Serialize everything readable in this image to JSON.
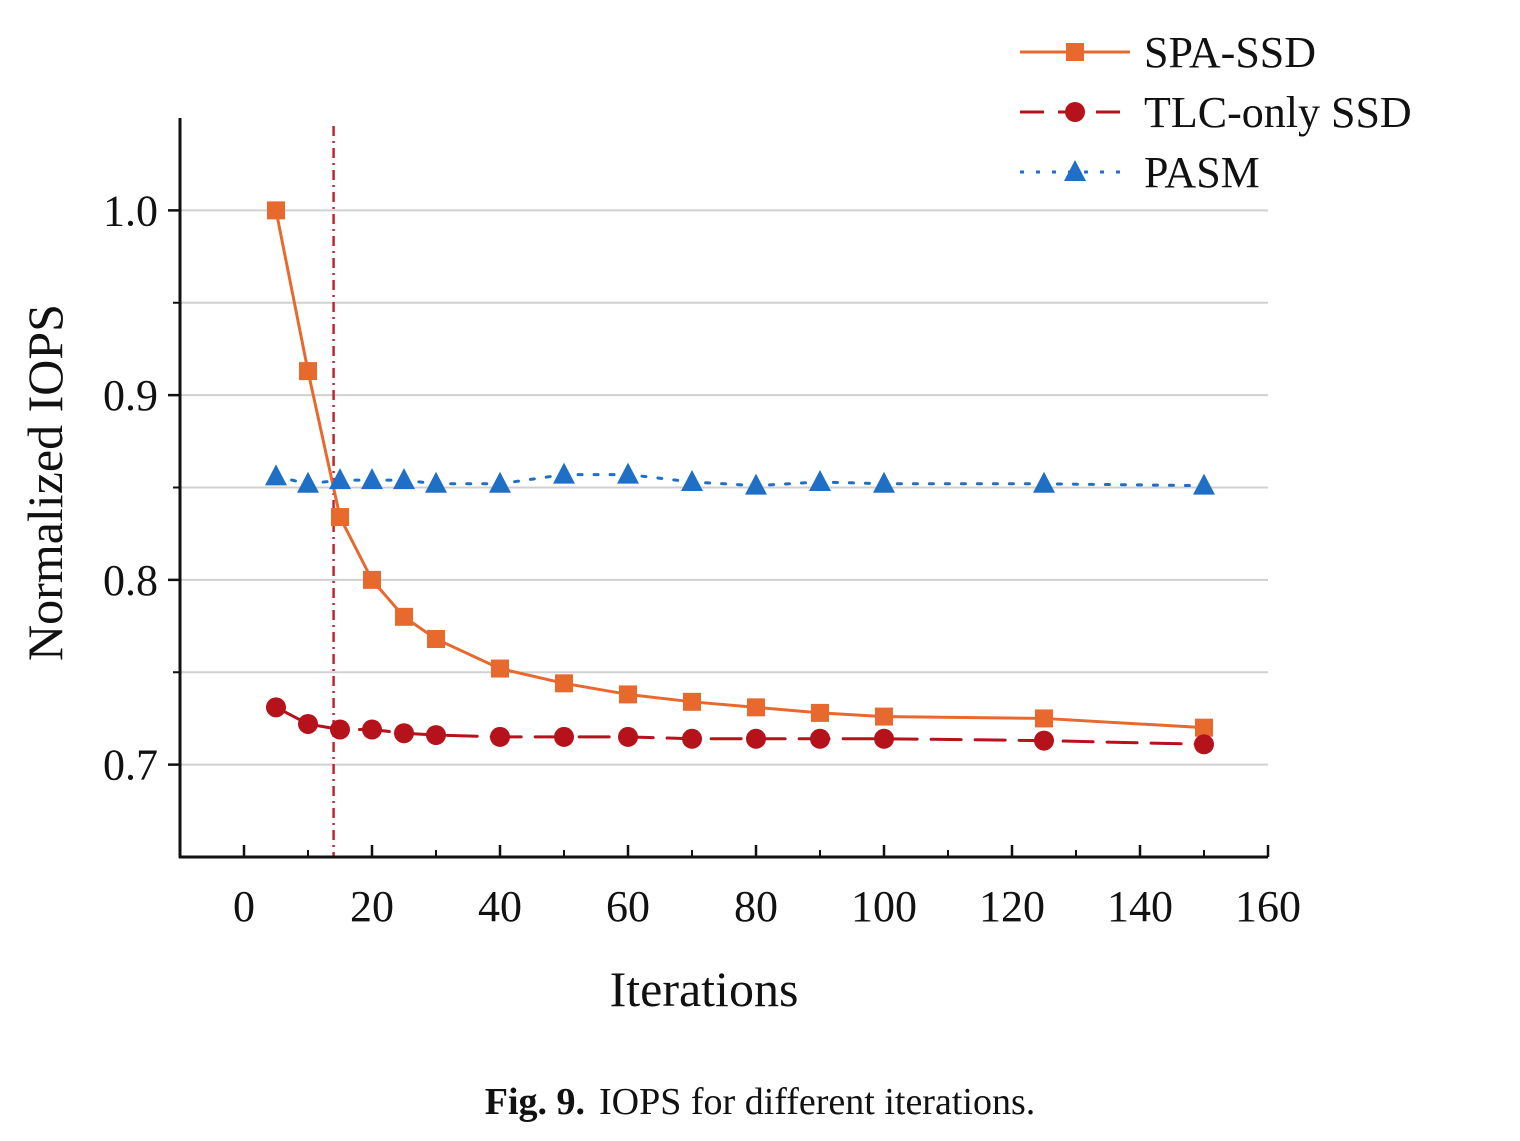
{
  "chart_data": {
    "type": "line",
    "xlabel": "Iterations",
    "ylabel": "Normalized IOPS",
    "xlim": [
      -10,
      160
    ],
    "ylim": [
      0.65,
      1.05
    ],
    "xticks": [
      0,
      20,
      40,
      60,
      80,
      100,
      120,
      140,
      160
    ],
    "xtick_labels": [
      "0",
      "20",
      "40",
      "60",
      "80",
      "100",
      "120",
      "140",
      "160"
    ],
    "yticks": [
      0.7,
      0.8,
      0.9,
      1.0
    ],
    "ytick_labels": [
      "0.7",
      "0.8",
      "0.9",
      "1.0"
    ],
    "y_minor_ticks": [
      0.75,
      0.85,
      0.95
    ],
    "grid": "horizontal",
    "legend_position": "top-right",
    "reference_line": {
      "x": 14,
      "color": "#c0272d",
      "style": "dash-dot"
    },
    "series": [
      {
        "name": "SPA-SSD",
        "color": "#e8692e",
        "marker": "square",
        "linestyle": "solid",
        "x": [
          5,
          10,
          15,
          20,
          25,
          30,
          40,
          50,
          60,
          70,
          80,
          90,
          100,
          125,
          150
        ],
        "values": [
          1.0,
          0.913,
          0.834,
          0.8,
          0.78,
          0.768,
          0.752,
          0.744,
          0.738,
          0.734,
          0.731,
          0.728,
          0.726,
          0.725,
          0.72
        ]
      },
      {
        "name": "TLC-only SSD",
        "color": "#b5121b",
        "marker": "circle",
        "linestyle": "dashed",
        "x": [
          5,
          10,
          15,
          20,
          25,
          30,
          40,
          50,
          60,
          70,
          80,
          90,
          100,
          125,
          150
        ],
        "values": [
          0.731,
          0.722,
          0.719,
          0.719,
          0.717,
          0.716,
          0.715,
          0.715,
          0.715,
          0.714,
          0.714,
          0.714,
          0.714,
          0.713,
          0.711
        ]
      },
      {
        "name": "PASM",
        "color": "#1f6fc6",
        "marker": "triangle",
        "linestyle": "dotted",
        "x": [
          5,
          10,
          15,
          20,
          25,
          30,
          40,
          50,
          60,
          70,
          80,
          90,
          100,
          125,
          150
        ],
        "values": [
          0.856,
          0.852,
          0.854,
          0.854,
          0.854,
          0.852,
          0.852,
          0.857,
          0.857,
          0.853,
          0.851,
          0.853,
          0.852,
          0.852,
          0.851
        ]
      }
    ]
  },
  "caption": {
    "label": "Fig. 9.",
    "text": "IOPS for different iterations."
  }
}
